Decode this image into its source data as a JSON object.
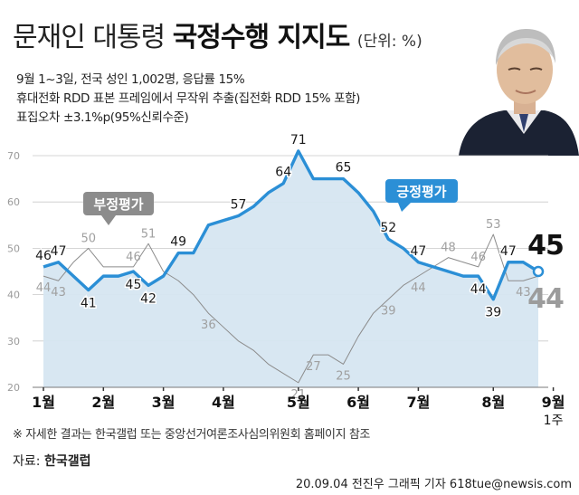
{
  "header": {
    "title_regular": "문재인 대통령",
    "title_bold": "국정수행 지지도",
    "unit": "(단위: %)"
  },
  "survey": {
    "line1": "9월 1~3일, 전국 성인 1,002명, 응답률 15%",
    "line2": "휴대전화 RDD 표본 프레임에서 무작위 추출(집전화 RDD 15% 포함)",
    "line3": "표집오차 ±3.1%p(95%신뢰수준)"
  },
  "chart_data": {
    "type": "line",
    "ylim": [
      20,
      70
    ],
    "yticks": [
      20,
      30,
      40,
      50,
      60,
      70
    ],
    "x_labels": [
      {
        "label": "1월",
        "index": 0
      },
      {
        "label": "2월",
        "index": 4
      },
      {
        "label": "3월",
        "index": 8
      },
      {
        "label": "4월",
        "index": 12
      },
      {
        "label": "5월",
        "index": 17
      },
      {
        "label": "6월",
        "index": 21
      },
      {
        "label": "7월",
        "index": 25
      },
      {
        "label": "8월",
        "index": 30
      },
      {
        "label": "9월",
        "index": 34
      }
    ],
    "x_sublabel": {
      "label": "1주",
      "index": 34
    },
    "series": [
      {
        "name": "긍정평가",
        "color": "#2b8fd6",
        "values": [
          46,
          47,
          44,
          41,
          44,
          44,
          45,
          42,
          44,
          49,
          49,
          55,
          56,
          57,
          59,
          62,
          64,
          71,
          65,
          65,
          65,
          62,
          58,
          52,
          50,
          47,
          46,
          45,
          44,
          44,
          39,
          47,
          47,
          45
        ],
        "labels": [
          {
            "index": 0,
            "text": "46"
          },
          {
            "index": 1,
            "text": "47"
          },
          {
            "index": 3,
            "text": "41"
          },
          {
            "index": 6,
            "text": "45"
          },
          {
            "index": 7,
            "text": "42"
          },
          {
            "index": 9,
            "text": "49"
          },
          {
            "index": 13,
            "text": "57"
          },
          {
            "index": 16,
            "text": "64"
          },
          {
            "index": 17,
            "text": "71"
          },
          {
            "index": 20,
            "text": "65"
          },
          {
            "index": 23,
            "text": "52"
          },
          {
            "index": 25,
            "text": "47"
          },
          {
            "index": 29,
            "text": "44"
          },
          {
            "index": 30,
            "text": "39"
          },
          {
            "index": 31,
            "text": "47"
          },
          {
            "index": 33,
            "text": "45"
          }
        ]
      },
      {
        "name": "부정평가",
        "color": "#8c8c8c",
        "values": [
          44,
          43,
          47,
          50,
          46,
          46,
          46,
          51,
          45,
          43,
          40,
          36,
          33,
          30,
          28,
          25,
          23,
          21,
          27,
          27,
          25,
          31,
          36,
          39,
          42,
          44,
          46,
          48,
          47,
          46,
          53,
          43,
          43,
          44
        ],
        "labels": [
          {
            "index": 0,
            "text": "44"
          },
          {
            "index": 1,
            "text": "43"
          },
          {
            "index": 3,
            "text": "50"
          },
          {
            "index": 6,
            "text": "46"
          },
          {
            "index": 7,
            "text": "51"
          },
          {
            "index": 11,
            "text": "36"
          },
          {
            "index": 17,
            "text": "21"
          },
          {
            "index": 18,
            "text": "27"
          },
          {
            "index": 20,
            "text": "25"
          },
          {
            "index": 23,
            "text": "39"
          },
          {
            "index": 25,
            "text": "44"
          },
          {
            "index": 27,
            "text": "48"
          },
          {
            "index": 29,
            "text": "46"
          },
          {
            "index": 30,
            "text": "53"
          },
          {
            "index": 32,
            "text": "43"
          },
          {
            "index": 33,
            "text": "44"
          }
        ]
      }
    ],
    "callouts": {
      "positive": "긍정평가",
      "negative": "부정평가"
    },
    "latest": {
      "positive": "45",
      "negative": "44"
    }
  },
  "footer": {
    "note": "※ 자세한 결과는 한국갤럽 또는 중앙선거여론조사심의위원회 홈페이지 참조",
    "source_label": "자료:",
    "source_name": "한국갤럽",
    "credit": "20.09.04 전진우 그래픽 기자 618tue@newsis.com"
  }
}
